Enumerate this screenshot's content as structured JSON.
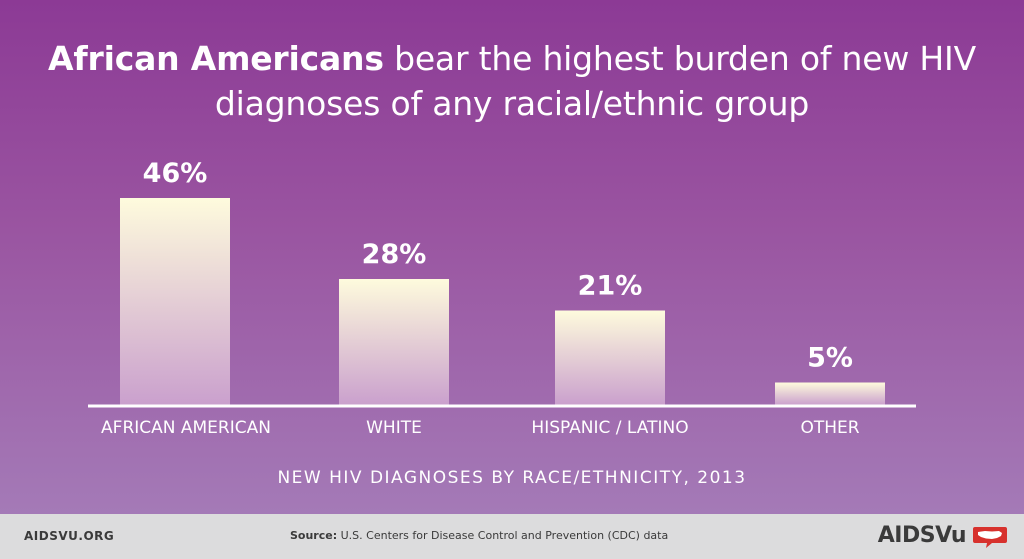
{
  "title": {
    "bold": "African Americans",
    "line1_rest": " bear the highest burden of new HIV",
    "line2": "diagnoses of any racial/ethnic group"
  },
  "chart_data": {
    "type": "bar",
    "title": "",
    "xlabel": "NEW HIV DIAGNOSES BY RACE/ETHNICITY, 2013",
    "ylabel": "",
    "categories": [
      "AFRICAN AMERICAN",
      "WHITE",
      "HISPANIC / LATINO",
      "OTHER"
    ],
    "values": [
      46,
      28,
      21,
      5
    ],
    "value_labels": [
      "46%",
      "28%",
      "21%",
      "5%"
    ],
    "unit": "%",
    "ylim": [
      0,
      50
    ],
    "grid": false,
    "colors": {
      "bar_top": "#fefbdd",
      "bar_bottom": "#caa0cd",
      "axis": "#ffffff",
      "text": "#ffffff"
    }
  },
  "footer": {
    "site": "AIDSVU.ORG",
    "source_label": "Source:",
    "source_text": " U.S. Centers for Disease Control and Prevention (CDC) data",
    "brand": "AIDSVu",
    "brand_icon": "us-map-chat-icon",
    "brand_color": "#d7312d"
  }
}
